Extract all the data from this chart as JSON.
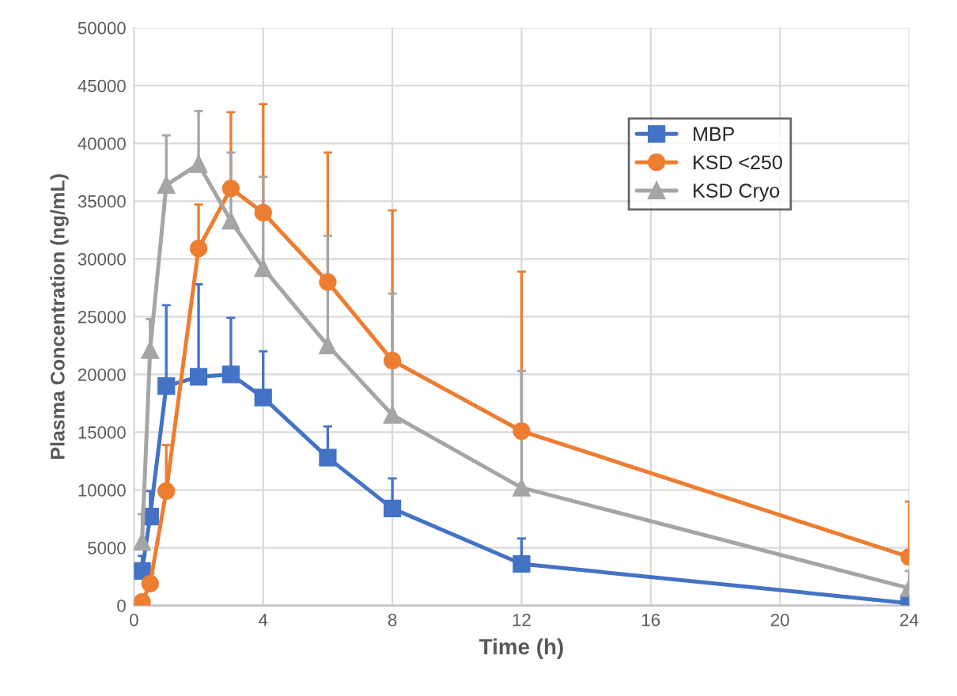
{
  "chart_data": {
    "type": "line",
    "xlabel": "Time (h)",
    "ylabel": "Plasma Concentration (ng/mL)",
    "x": [
      0.25,
      0.5,
      1,
      2,
      3,
      4,
      6,
      8,
      12,
      24
    ],
    "series": [
      {
        "name": "MBP",
        "color": "#4472c4",
        "marker": "square",
        "values": [
          3000,
          7700,
          19000,
          19800,
          20000,
          18000,
          12800,
          8400,
          3600,
          200
        ],
        "errors": [
          [
            3000,
            4300
          ],
          [
            7700,
            9900
          ],
          [
            19000,
            26000
          ],
          [
            19800,
            27800
          ],
          [
            20000,
            24900
          ],
          [
            18000,
            22000
          ],
          [
            12800,
            15500
          ],
          [
            8400,
            11000
          ],
          [
            3600,
            5800
          ],
          null
        ]
      },
      {
        "name": "KSD <250",
        "color": "#ed7d31",
        "marker": "circle",
        "values": [
          300,
          1900,
          9900,
          30900,
          36100,
          34000,
          28000,
          21200,
          15100,
          4200
        ],
        "errors": [
          null,
          [
            1900,
            2800
          ],
          [
            9900,
            13900
          ],
          [
            30900,
            34700
          ],
          [
            36100,
            42700
          ],
          [
            34000,
            43400
          ],
          [
            28000,
            39200
          ],
          [
            21200,
            34200
          ],
          [
            15100,
            28900
          ],
          [
            4200,
            9000
          ]
        ]
      },
      {
        "name": "KSD Cryo",
        "color": "#a5a5a5",
        "marker": "triangle",
        "values": [
          5500,
          22100,
          36400,
          38200,
          33300,
          29200,
          22500,
          16500,
          10200,
          1500
        ],
        "errors": [
          [
            5500,
            7900
          ],
          [
            22100,
            24800
          ],
          [
            36400,
            40700
          ],
          [
            38200,
            42800
          ],
          [
            33300,
            39200
          ],
          [
            29200,
            37100
          ],
          [
            22500,
            32000
          ],
          [
            16500,
            27000
          ],
          [
            10200,
            20300
          ],
          [
            1500,
            3000
          ]
        ]
      }
    ],
    "xlim": [
      0,
      24
    ],
    "xticks": [
      0,
      4,
      8,
      12,
      16,
      20,
      24
    ],
    "ylim": [
      0,
      50000
    ],
    "yticks": [
      0,
      5000,
      10000,
      15000,
      20000,
      25000,
      30000,
      35000,
      40000,
      45000,
      50000
    ],
    "grid": true,
    "legend": "top right",
    "line_style": "solid"
  }
}
